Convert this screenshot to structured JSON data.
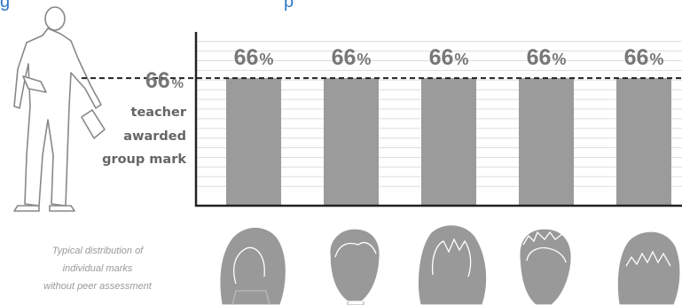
{
  "title": "",
  "group_mark": {
    "value_label": "66",
    "unit": "%",
    "lines": [
      "teacher",
      "awarded",
      "group mark"
    ]
  },
  "caption": [
    "Typical distribution of",
    "individual marks",
    "without peer assessment"
  ],
  "icons": {
    "teacher": "teacher-holding-paper-figure",
    "students": [
      "student-face-1",
      "student-face-2",
      "student-face-3",
      "student-face-4",
      "student-face-5"
    ]
  },
  "colors": {
    "bar": "#9b9b9b",
    "grid": "#dddddd",
    "axis": "#222222",
    "label": "#777777",
    "face": "#999999",
    "title": "#2e75c8"
  },
  "chart_data": {
    "type": "bar",
    "categories": [
      "",
      "",
      "",
      "",
      ""
    ],
    "values": [
      66,
      66,
      66,
      66,
      66
    ],
    "value_labels": [
      "66%",
      "66%",
      "66%",
      "66%",
      "66%"
    ],
    "reference_line": 66,
    "ylim": [
      0,
      100
    ],
    "grid": true,
    "legend": "none"
  }
}
